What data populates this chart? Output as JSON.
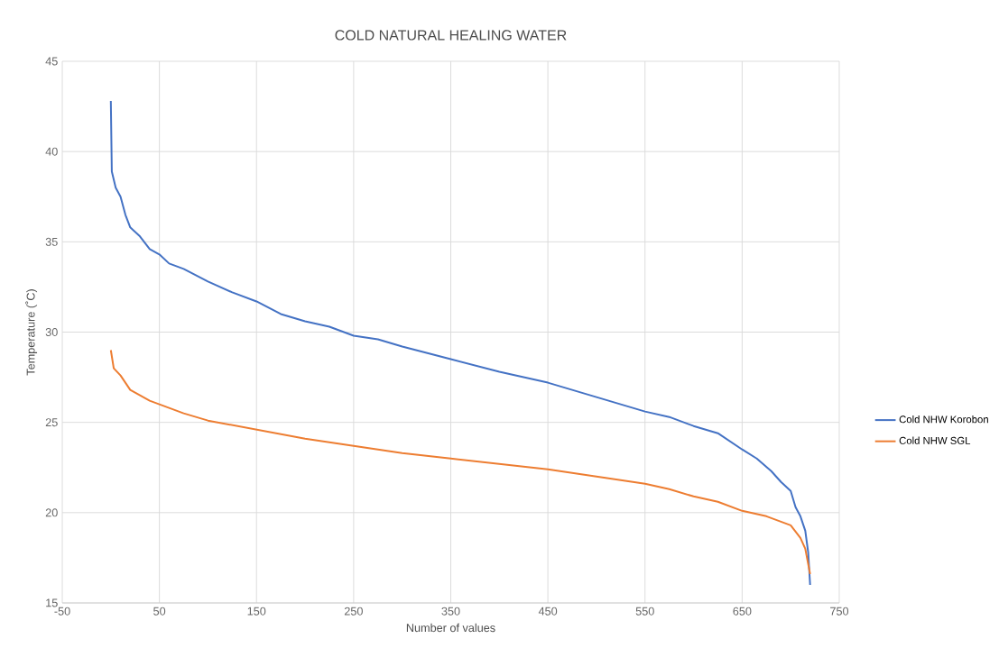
{
  "chart_data": {
    "type": "line",
    "title": "COLD NATURAL HEALING WATER",
    "xlabel": "Number of values",
    "ylabel": "Temperature (˚C)",
    "xlim": [
      -50,
      750
    ],
    "xticks": [
      -50,
      50,
      150,
      250,
      350,
      450,
      550,
      650,
      750
    ],
    "ylim": [
      15,
      45
    ],
    "yticks": [
      15,
      20,
      25,
      30,
      35,
      40,
      45
    ],
    "grid": true,
    "legend": "right",
    "marker": "none",
    "line_style": "solid",
    "series": [
      {
        "name": "Cold NHW Korobon",
        "color": "#4472c4",
        "x": [
          0,
          1,
          5,
          10,
          15,
          20,
          30,
          40,
          50,
          60,
          75,
          100,
          125,
          150,
          175,
          200,
          225,
          250,
          275,
          300,
          350,
          400,
          450,
          500,
          550,
          575,
          600,
          625,
          650,
          665,
          680,
          690,
          700,
          705,
          710,
          715,
          718,
          720
        ],
        "values": [
          42.8,
          38.9,
          38.0,
          37.5,
          36.5,
          35.8,
          35.3,
          34.6,
          34.3,
          33.8,
          33.5,
          32.8,
          32.2,
          31.7,
          31.0,
          30.6,
          30.3,
          29.8,
          29.6,
          29.2,
          28.5,
          27.8,
          27.2,
          26.4,
          25.6,
          25.3,
          24.8,
          24.4,
          23.5,
          23.0,
          22.3,
          21.7,
          21.2,
          20.3,
          19.8,
          19.0,
          17.8,
          16.0
        ]
      },
      {
        "name": "Cold NHW SGL",
        "color": "#ed7d31",
        "x": [
          0,
          3,
          10,
          15,
          20,
          30,
          40,
          50,
          75,
          100,
          150,
          200,
          250,
          300,
          350,
          400,
          450,
          500,
          550,
          575,
          600,
          625,
          650,
          675,
          700,
          710,
          715,
          720
        ],
        "values": [
          29.0,
          28.0,
          27.6,
          27.2,
          26.8,
          26.5,
          26.2,
          26.0,
          25.5,
          25.1,
          24.6,
          24.1,
          23.7,
          23.3,
          23.0,
          22.7,
          22.4,
          22.0,
          21.6,
          21.3,
          20.9,
          20.6,
          20.1,
          19.8,
          19.3,
          18.6,
          18.0,
          16.6
        ]
      }
    ]
  }
}
